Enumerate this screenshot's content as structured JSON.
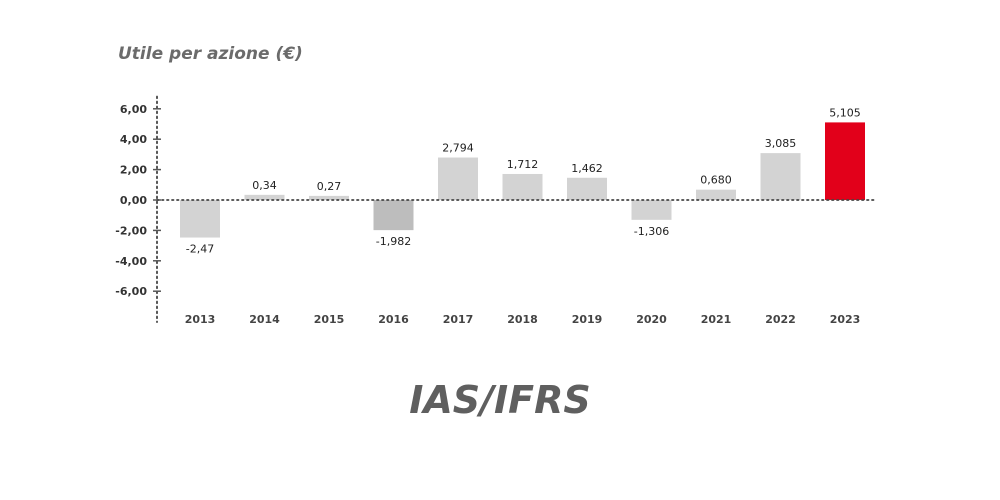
{
  "chart_data": {
    "type": "bar",
    "title": "Utile per azione (€)",
    "categories": [
      "2013",
      "2014",
      "2015",
      "2016",
      "2017",
      "2018",
      "2019",
      "2020",
      "2021",
      "2022",
      "2023"
    ],
    "values": [
      -2.47,
      0.34,
      0.27,
      -1.982,
      2.794,
      1.712,
      1.462,
      -1.306,
      0.68,
      3.085,
      5.105
    ],
    "value_labels": [
      "-2,47",
      "0,34",
      "0,27",
      "-1,982",
      "2,794",
      "1,712",
      "1,462",
      "-1,306",
      "0,680",
      "3,085",
      "5,105"
    ],
    "y_ticks": [
      6,
      4,
      2,
      0,
      -2,
      -4,
      -6
    ],
    "y_tick_labels": [
      "6,00",
      "4,00",
      "2,00",
      "0,00",
      "-2,00",
      "-4,00",
      "-6,00"
    ],
    "ylim": [
      -7.5,
      6.8
    ],
    "grid": false,
    "colors": {
      "default": "#d3d3d3",
      "highlight": "#e2001a",
      "2016": "#bdbdbd"
    },
    "highlight_index": 10
  },
  "footer": {
    "label": "IAS/IFRS"
  }
}
